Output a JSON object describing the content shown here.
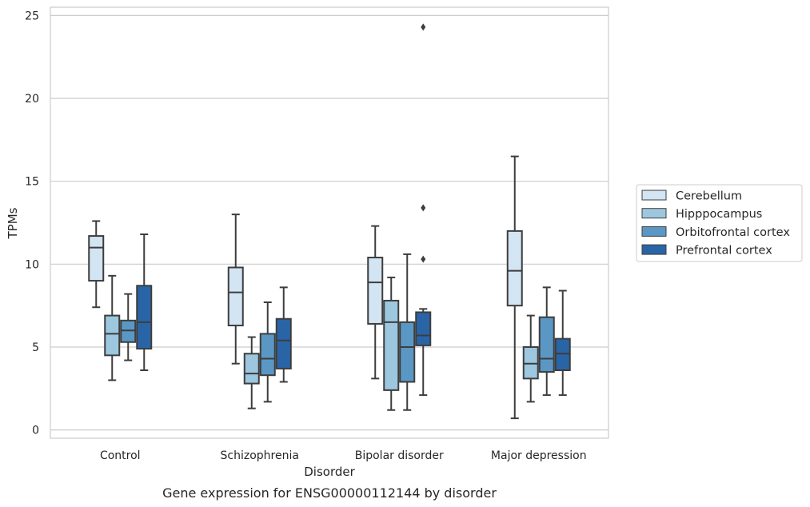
{
  "chart_data": {
    "type": "box",
    "caption": "Gene expression for ENSG00000112144 by disorder",
    "xlabel": "Disorder",
    "ylabel": "TPMs",
    "ylim": [
      -0.5,
      25.5
    ],
    "yticks": [
      0,
      5,
      10,
      15,
      20,
      25
    ],
    "grid": "horizontal",
    "legend_position": "right",
    "categories": [
      "Control",
      "Schizophrenia",
      "Bipolar disorder",
      "Major depression"
    ],
    "series": [
      {
        "name": "Cerebellum",
        "color": "#d3e4f3",
        "boxes": [
          {
            "whislo": 7.4,
            "q1": 9.0,
            "med": 11.0,
            "q3": 11.7,
            "whishi": 12.6,
            "fliers": []
          },
          {
            "whislo": 4.0,
            "q1": 6.3,
            "med": 8.3,
            "q3": 9.8,
            "whishi": 13.0,
            "fliers": []
          },
          {
            "whislo": 3.1,
            "q1": 6.4,
            "med": 8.9,
            "q3": 10.4,
            "whishi": 12.3,
            "fliers": []
          },
          {
            "whislo": 0.7,
            "q1": 7.5,
            "med": 9.6,
            "q3": 12.0,
            "whishi": 16.5,
            "fliers": []
          }
        ]
      },
      {
        "name": "Hipppocampus",
        "color": "#9dc7de",
        "boxes": [
          {
            "whislo": 3.0,
            "q1": 4.5,
            "med": 5.8,
            "q3": 6.9,
            "whishi": 9.3,
            "fliers": []
          },
          {
            "whislo": 1.3,
            "q1": 2.8,
            "med": 3.4,
            "q3": 4.6,
            "whishi": 5.6,
            "fliers": []
          },
          {
            "whislo": 1.2,
            "q1": 2.4,
            "med": 6.5,
            "q3": 7.8,
            "whishi": 9.2,
            "fliers": []
          },
          {
            "whislo": 1.7,
            "q1": 3.1,
            "med": 4.0,
            "q3": 5.0,
            "whishi": 6.9,
            "fliers": []
          }
        ]
      },
      {
        "name": "Orbitofrontal cortex",
        "color": "#5a97c4",
        "boxes": [
          {
            "whislo": 4.2,
            "q1": 5.3,
            "med": 6.0,
            "q3": 6.6,
            "whishi": 8.2,
            "fliers": []
          },
          {
            "whislo": 1.7,
            "q1": 3.3,
            "med": 4.3,
            "q3": 5.8,
            "whishi": 7.7,
            "fliers": []
          },
          {
            "whislo": 1.2,
            "q1": 2.9,
            "med": 5.0,
            "q3": 6.5,
            "whishi": 10.6,
            "fliers": []
          },
          {
            "whislo": 2.1,
            "q1": 3.5,
            "med": 4.3,
            "q3": 6.8,
            "whishi": 8.6,
            "fliers": []
          }
        ]
      },
      {
        "name": "Prefrontal cortex",
        "color": "#2965a6",
        "boxes": [
          {
            "whislo": 3.6,
            "q1": 4.9,
            "med": 6.5,
            "q3": 8.7,
            "whishi": 11.8,
            "fliers": []
          },
          {
            "whislo": 2.9,
            "q1": 3.7,
            "med": 5.4,
            "q3": 6.7,
            "whishi": 8.6,
            "fliers": []
          },
          {
            "whislo": 2.1,
            "q1": 5.1,
            "med": 5.7,
            "q3": 7.1,
            "whishi": 7.3,
            "fliers": [
              10.3,
              13.4,
              24.3
            ]
          },
          {
            "whislo": 2.1,
            "q1": 3.6,
            "med": 4.6,
            "q3": 5.5,
            "whishi": 8.4,
            "fliers": []
          }
        ]
      }
    ]
  }
}
